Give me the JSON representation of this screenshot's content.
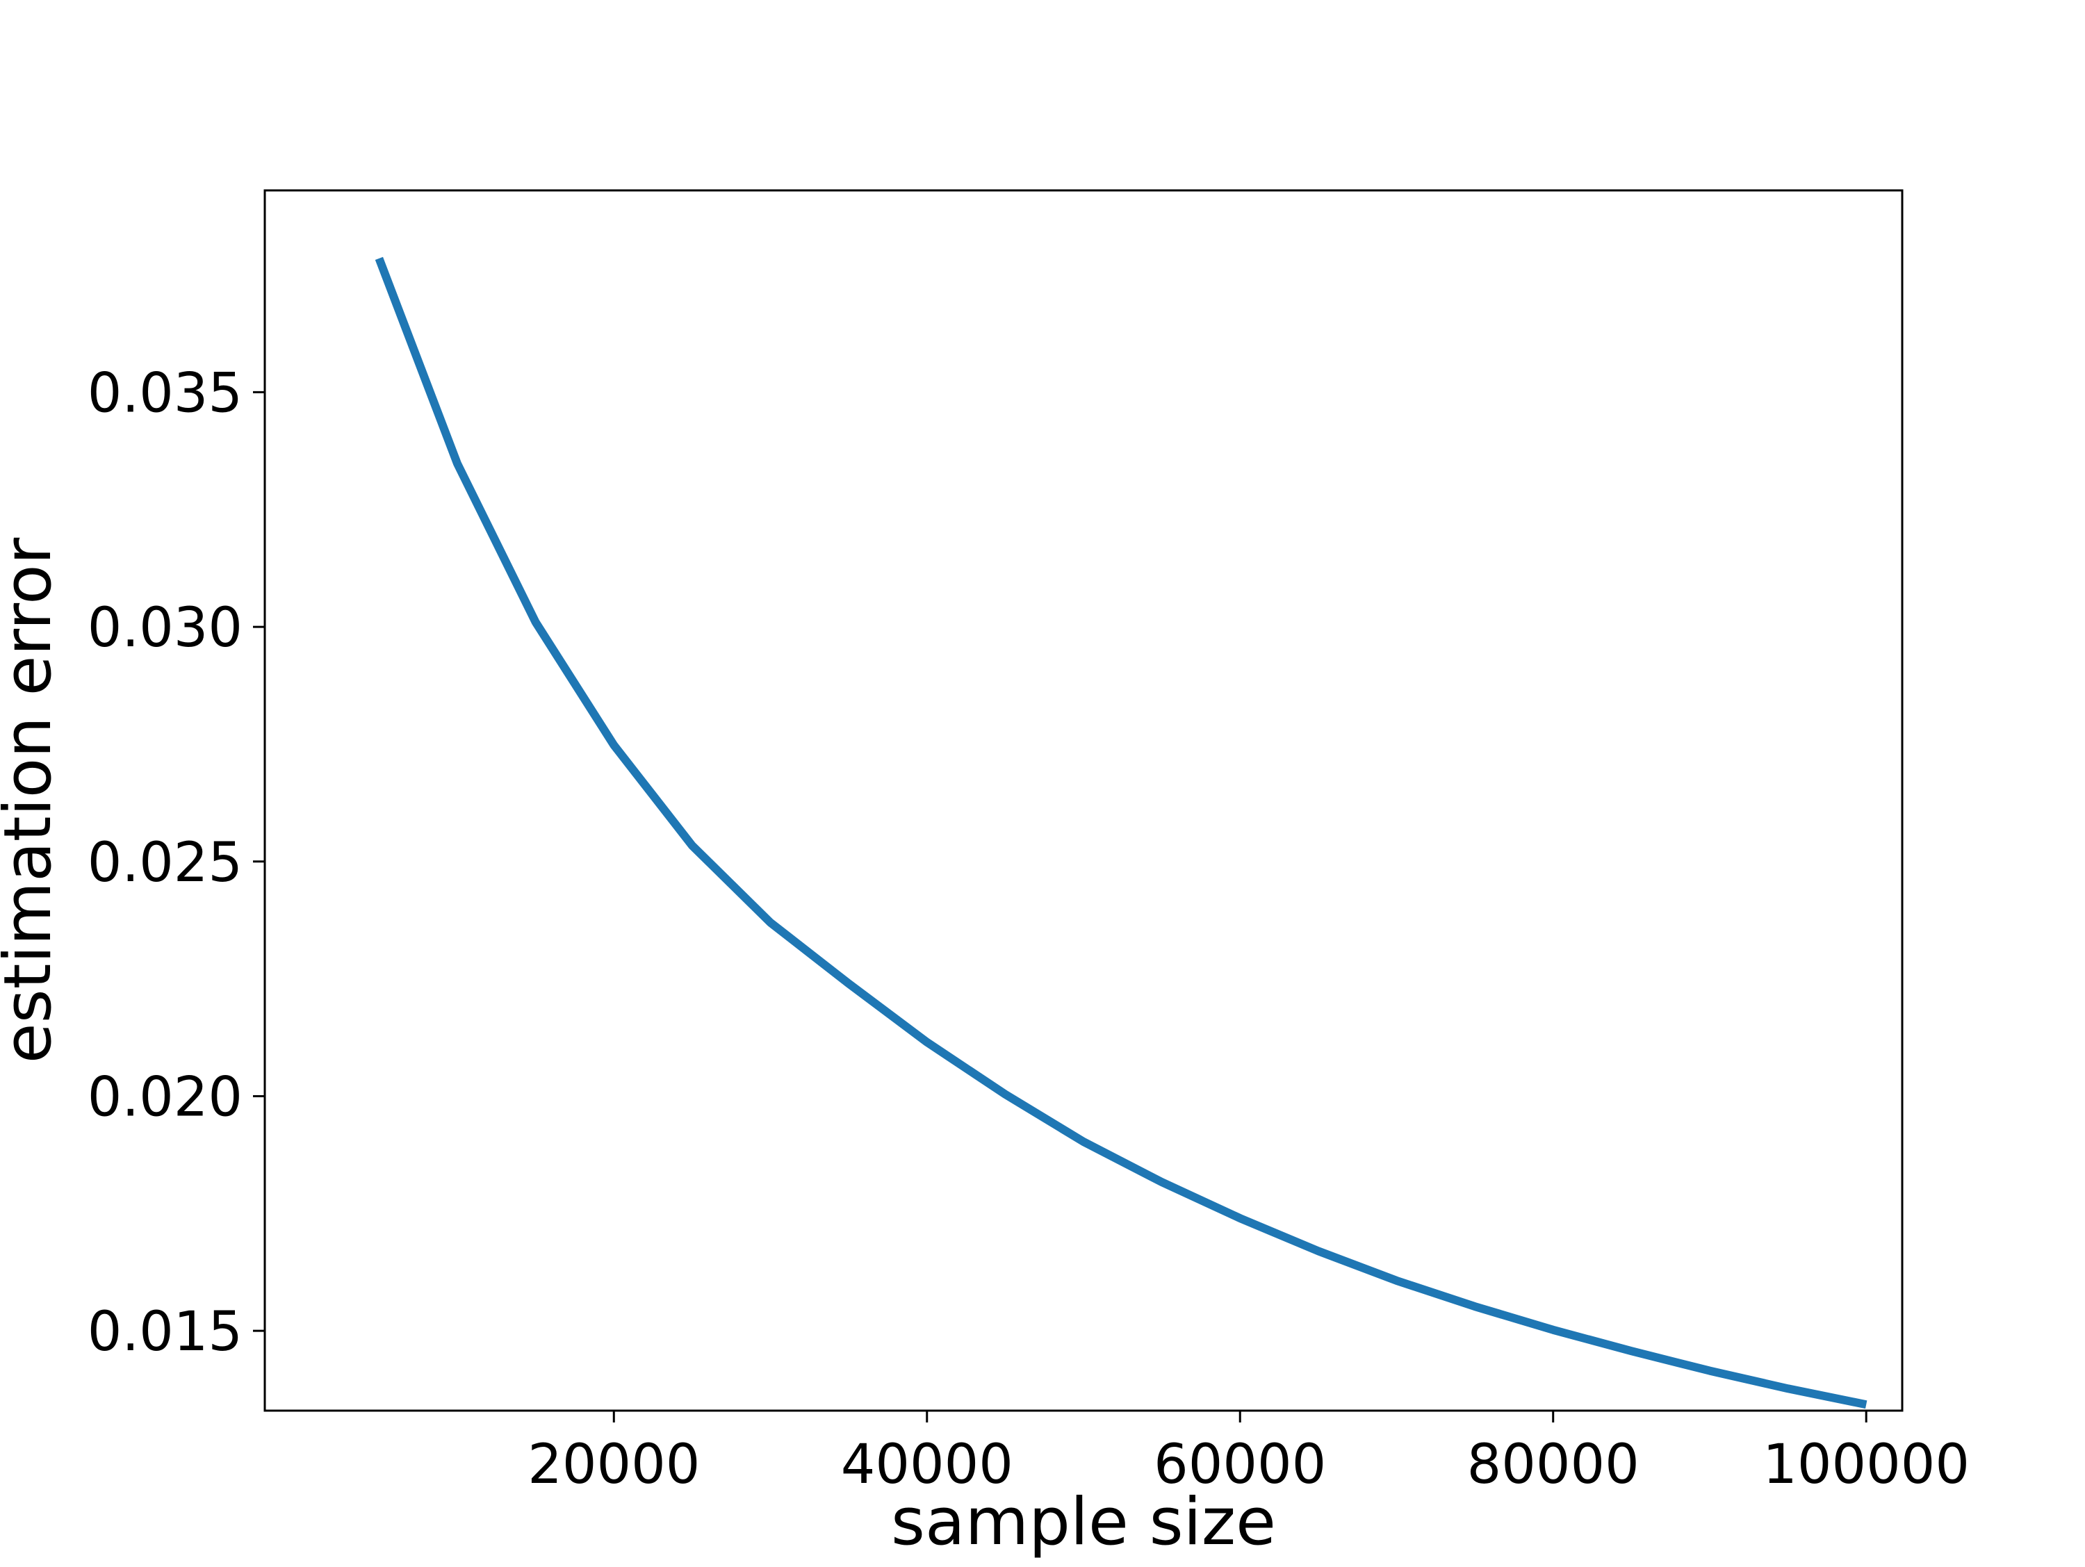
{
  "chart_data": {
    "type": "line",
    "title": "",
    "xlabel": "sample size",
    "ylabel": "estimation error",
    "xlim": [
      -2300,
      102300
    ],
    "ylim": [
      0.0133,
      0.0393
    ],
    "xticks": [
      20000,
      40000,
      60000,
      80000,
      100000
    ],
    "xtick_labels": [
      "20000",
      "40000",
      "60000",
      "80000",
      "100000"
    ],
    "yticks": [
      0.015,
      0.02,
      0.025,
      0.03,
      0.035
    ],
    "ytick_labels": [
      "0.015",
      "0.020",
      "0.025",
      "0.030",
      "0.035"
    ],
    "grid": false,
    "legend": "none",
    "series": [
      {
        "color": "#1f77b4",
        "x": [
          5000,
          10000,
          15000,
          20000,
          25000,
          30000,
          35000,
          40000,
          45000,
          50000,
          55000,
          60000,
          65000,
          70000,
          75000,
          80000,
          85000,
          90000,
          95000,
          100000
        ],
        "y": [
          0.03785,
          0.03348,
          0.0301,
          0.02748,
          0.02534,
          0.0237,
          0.0224,
          0.02115,
          0.02004,
          0.01903,
          0.01817,
          0.0174,
          0.0167,
          0.01607,
          0.01552,
          0.01502,
          0.01457,
          0.01415,
          0.01377,
          0.01343
        ]
      }
    ]
  }
}
